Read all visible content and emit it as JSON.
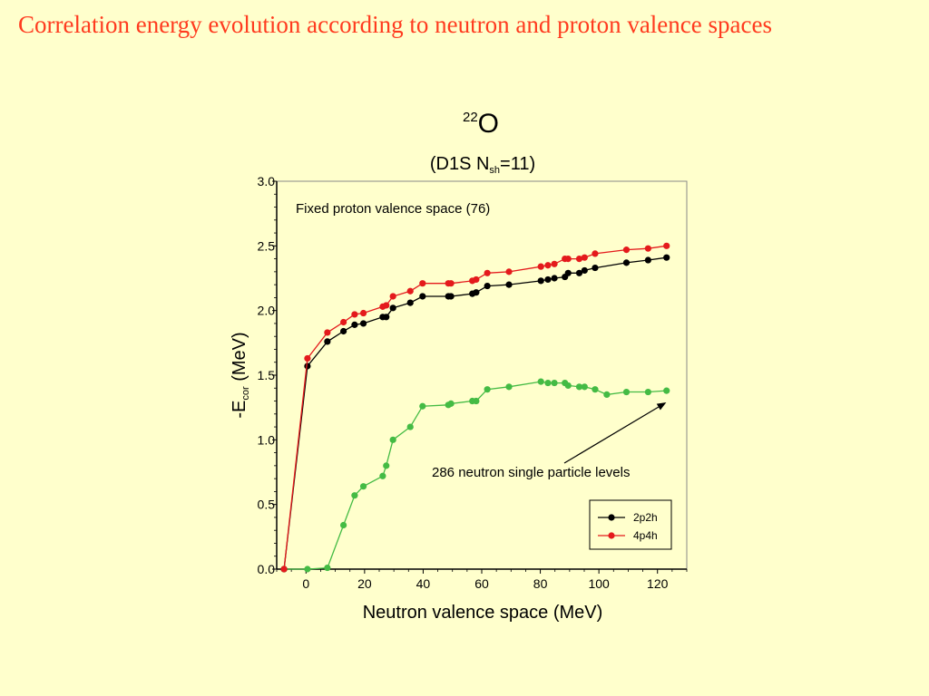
{
  "slide": {
    "title": "Correlation energy evolution according to neutron and proton valence spaces"
  },
  "chart_data": {
    "type": "line",
    "title": {
      "mass_number": "22",
      "element": "O",
      "subtitle_pre": "(D1S  N",
      "subtitle_sub": "sh",
      "subtitle_post": "=11)"
    },
    "xlabel": "Neutron valence space  (MeV)",
    "ylabel": {
      "pre": "-E",
      "sub": "cor",
      "post": "  (MeV)"
    },
    "xlim": [
      -10,
      130
    ],
    "ylim": [
      0,
      3.0
    ],
    "xticks": [
      0,
      20,
      40,
      60,
      80,
      100,
      120
    ],
    "yticks": [
      0.0,
      0.5,
      1.0,
      1.5,
      2.0,
      2.5,
      3.0
    ],
    "ytick_labels": [
      "0.0",
      "0.5",
      "1.0",
      "1.5",
      "2.0",
      "2.5",
      "3.0"
    ],
    "annotations": {
      "top": "Fixed proton valence space (76)",
      "arrow_text": "286 neutron single particle levels",
      "arrow_target": [
        123,
        1.29
      ]
    },
    "legend_position": "bottom-right",
    "grid": false,
    "series": [
      {
        "name": "2p2h",
        "color": "#000000",
        "in_legend": true,
        "x": [
          -7.5,
          0.5,
          7.3,
          12.8,
          16.6,
          19.6,
          26.2,
          27.4,
          29.7,
          35.6,
          39.8,
          48.6,
          49.5,
          56.8,
          58.1,
          61.9,
          69.3,
          80.2,
          82.6,
          84.8,
          88.4,
          89.5,
          93.3,
          95.1,
          98.7,
          109.4,
          116.8,
          123.1
        ],
        "y": [
          0.0,
          1.57,
          1.76,
          1.84,
          1.89,
          1.9,
          1.95,
          1.95,
          2.02,
          2.06,
          2.11,
          2.11,
          2.11,
          2.13,
          2.14,
          2.19,
          2.2,
          2.23,
          2.24,
          2.25,
          2.26,
          2.29,
          2.29,
          2.31,
          2.33,
          2.37,
          2.39,
          2.41
        ]
      },
      {
        "name": "4p4h",
        "color": "#e41a1c",
        "in_legend": true,
        "x": [
          -7.5,
          0.5,
          7.3,
          12.8,
          16.6,
          19.6,
          26.2,
          27.4,
          29.7,
          35.6,
          39.8,
          48.6,
          49.5,
          56.8,
          58.1,
          61.9,
          69.3,
          80.2,
          82.6,
          84.8,
          88.4,
          89.5,
          93.3,
          95.1,
          98.7,
          109.4,
          116.8,
          123.1
        ],
        "y": [
          0.0,
          1.63,
          1.83,
          1.91,
          1.97,
          1.98,
          2.03,
          2.04,
          2.11,
          2.15,
          2.21,
          2.21,
          2.21,
          2.23,
          2.24,
          2.29,
          2.3,
          2.34,
          2.35,
          2.36,
          2.4,
          2.4,
          2.4,
          2.41,
          2.44,
          2.47,
          2.48,
          2.5
        ]
      },
      {
        "name": "",
        "color": "#44bb44",
        "in_legend": false,
        "x": [
          -7.5,
          0.5,
          7.3,
          12.8,
          16.6,
          19.6,
          26.2,
          27.4,
          29.7,
          35.6,
          39.8,
          48.6,
          49.5,
          56.8,
          58.1,
          61.9,
          69.3,
          80.2,
          82.6,
          84.8,
          88.4,
          89.5,
          93.3,
          95.1,
          98.7,
          102.7,
          109.4,
          116.8,
          123.1
        ],
        "y": [
          0.0,
          0.0,
          0.01,
          0.34,
          0.57,
          0.64,
          0.72,
          0.8,
          1.0,
          1.1,
          1.26,
          1.27,
          1.28,
          1.3,
          1.3,
          1.39,
          1.41,
          1.45,
          1.44,
          1.44,
          1.44,
          1.42,
          1.41,
          1.41,
          1.39,
          1.35,
          1.37,
          1.37,
          1.38
        ]
      }
    ]
  }
}
